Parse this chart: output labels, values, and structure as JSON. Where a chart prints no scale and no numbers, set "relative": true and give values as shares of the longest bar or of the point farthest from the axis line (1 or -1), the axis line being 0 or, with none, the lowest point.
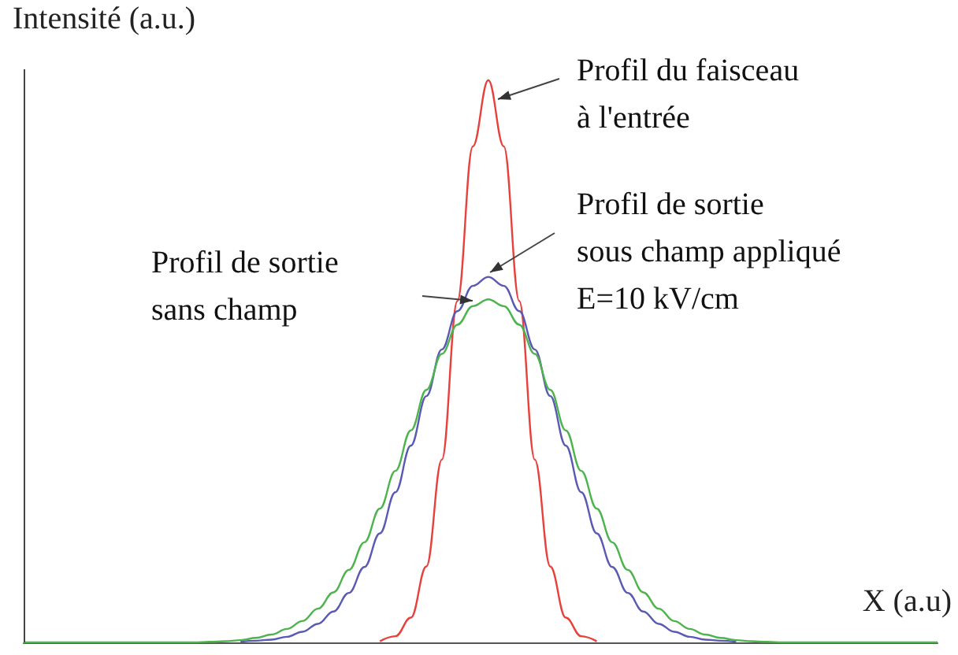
{
  "chart_data": {
    "type": "line",
    "relative": true,
    "xlabel": "X (a.u)",
    "ylabel": "Intensité (a.u.)",
    "marker": "none",
    "line_style": "solid",
    "categories": [
      null,
      null,
      null,
      null,
      null,
      null,
      null,
      null,
      null,
      null,
      null,
      null,
      null,
      null,
      null,
      null,
      null,
      null,
      null,
      null,
      null,
      null,
      null,
      null,
      null,
      null,
      null,
      null,
      null,
      null,
      null,
      null,
      null,
      null,
      null,
      null,
      null,
      null,
      null,
      null,
      null,
      null,
      null,
      null,
      null,
      null,
      null,
      null,
      null,
      null,
      null,
      null,
      null,
      null,
      null,
      null,
      null,
      null,
      null,
      null
    ],
    "series": [
      {
        "color": "#e8413c",
        "values": [
          null,
          null,
          null,
          null,
          null,
          null,
          null,
          null,
          null,
          null,
          null,
          null,
          null,
          null,
          null,
          null,
          null,
          null,
          null,
          null,
          null,
          null,
          null,
          0.002,
          0.011,
          0.044,
          0.135,
          0.325,
          0.607,
          0.882,
          1,
          0.882,
          0.607,
          0.325,
          0.135,
          0.044,
          0.011,
          0.002,
          null,
          null,
          null,
          null,
          null,
          null,
          null,
          null,
          null,
          null,
          null,
          null,
          null,
          null,
          null,
          null,
          null,
          null,
          null,
          null,
          null,
          null
        ]
      },
      {
        "color": "#5a5ab4",
        "values": [
          null,
          null,
          null,
          null,
          null,
          null,
          null,
          null,
          null,
          null,
          null,
          null,
          null,
          null,
          0.001,
          0.003,
          0.005,
          0.01,
          0.019,
          0.033,
          0.055,
          0.088,
          0.134,
          0.194,
          0.267,
          0.35,
          0.438,
          0.521,
          0.589,
          0.634,
          0.65,
          0.634,
          0.589,
          0.521,
          0.438,
          0.35,
          0.267,
          0.194,
          0.134,
          0.088,
          0.055,
          0.033,
          0.019,
          0.01,
          0.005,
          0.003,
          0.001,
          null,
          null,
          null,
          null,
          null,
          null,
          null,
          null,
          null,
          null,
          null,
          null,
          null
        ]
      },
      {
        "color": "#4db34d",
        "values": [
          0,
          0,
          0,
          0,
          0,
          0,
          0,
          0,
          0,
          0,
          0,
          0,
          0.001,
          0.002,
          0.004,
          0.008,
          0.014,
          0.024,
          0.038,
          0.06,
          0.089,
          0.129,
          0.178,
          0.238,
          0.305,
          0.377,
          0.449,
          0.513,
          0.565,
          0.598,
          0.61,
          0.598,
          0.565,
          0.513,
          0.449,
          0.377,
          0.305,
          0.238,
          0.178,
          0.129,
          0.089,
          0.06,
          0.038,
          0.024,
          0.014,
          0.008,
          0.004,
          0.002,
          0.001,
          0,
          0,
          0,
          0,
          0,
          0,
          0,
          0,
          0,
          0,
          0
        ]
      }
    ],
    "annotations": [
      "Profil du faisceau\nà l'entrée",
      "Profil de sortie\nsous champ appliqué\nE=10 kV/cm",
      "Profil de sortie\nsans champ"
    ]
  }
}
